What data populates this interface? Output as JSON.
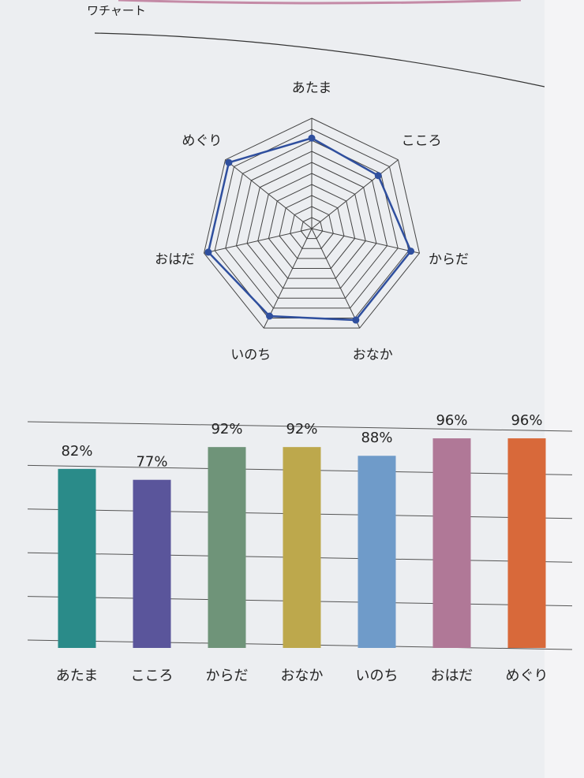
{
  "header": {
    "title": "ワチャート"
  },
  "chart_data": [
    {
      "type": "radar",
      "categories": [
        "あたま",
        "こころ",
        "からだ",
        "おなか",
        "いのち",
        "おはだ",
        "めぐり"
      ],
      "values": [
        82,
        77,
        92,
        92,
        88,
        96,
        96
      ],
      "color": "#2f4f9e",
      "rlim": [
        0,
        100
      ],
      "rticks": [
        10,
        20,
        30,
        40,
        50,
        60,
        70,
        80,
        90,
        100
      ]
    },
    {
      "type": "bar",
      "categories": [
        "あたま",
        "こころ",
        "からだ",
        "おなか",
        "いのち",
        "おはだ",
        "めぐり"
      ],
      "values": [
        82,
        77,
        92,
        92,
        88,
        96,
        96
      ],
      "value_labels": [
        "82%",
        "77%",
        "92%",
        "92%",
        "88%",
        "96%",
        "96%"
      ],
      "colors": [
        "#2a8b89",
        "#5a559b",
        "#6f9479",
        "#bda84c",
        "#6f9bc9",
        "#b07897",
        "#d8693a"
      ],
      "ylim": [
        0,
        100
      ],
      "yticks": [
        0,
        20,
        40,
        60,
        80,
        100
      ],
      "grid": true
    }
  ]
}
